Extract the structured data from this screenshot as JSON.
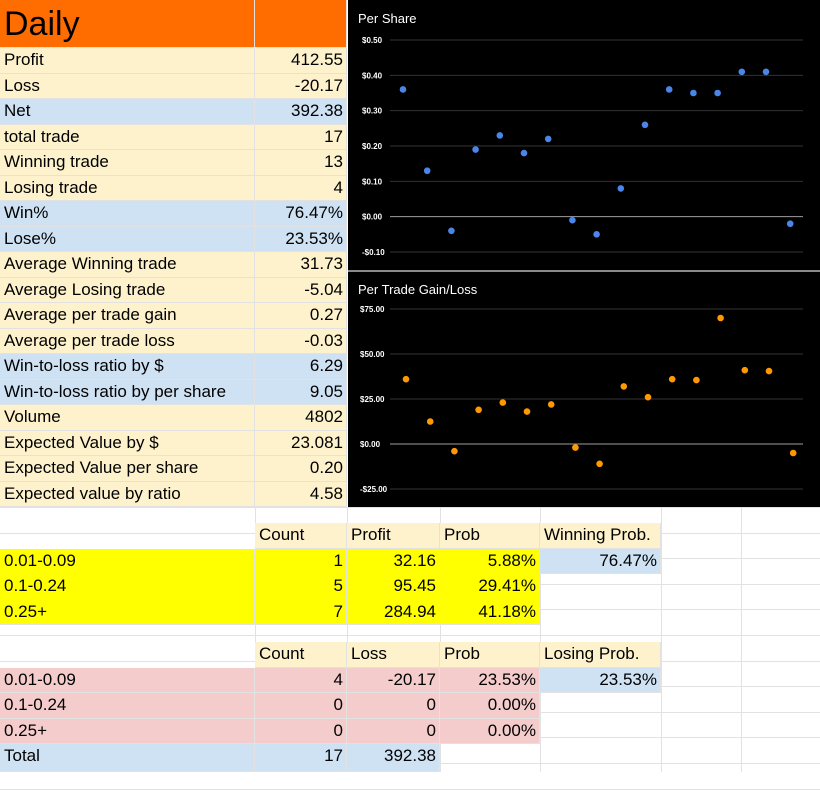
{
  "daily": {
    "title": "Daily",
    "rows": [
      {
        "label": "Profit",
        "value": "412.55",
        "color": "beige"
      },
      {
        "label": "Loss",
        "value": "-20.17",
        "color": "beige"
      },
      {
        "label": "Net",
        "value": "392.38",
        "color": "blue"
      },
      {
        "label": "total trade",
        "value": "17",
        "color": "beige"
      },
      {
        "label": "Winning trade",
        "value": "13",
        "color": "beige"
      },
      {
        "label": "Losing trade",
        "value": "4",
        "color": "beige"
      },
      {
        "label": "Win%",
        "value": "76.47%",
        "color": "blue"
      },
      {
        "label": "Lose%",
        "value": "23.53%",
        "color": "blue"
      },
      {
        "label": "Average Winning trade",
        "value": "31.73",
        "color": "beige"
      },
      {
        "label": "Average Losing trade",
        "value": "-5.04",
        "color": "beige"
      },
      {
        "label": "Average per trade gain",
        "value": "0.27",
        "color": "beige"
      },
      {
        "label": "Average per trade loss",
        "value": "-0.03",
        "color": "beige"
      },
      {
        "label": "Win-to-loss ratio by $",
        "value": "6.29",
        "color": "blue"
      },
      {
        "label": "Win-to-loss ratio by per share",
        "value": "9.05",
        "color": "blue"
      },
      {
        "label": "Volume",
        "value": "4802",
        "color": "beige"
      },
      {
        "label": "Expected Value by $",
        "value": "23.081",
        "color": "beige"
      },
      {
        "label": "Expected Value per share",
        "value": "0.20",
        "color": "beige"
      },
      {
        "label": "Expected value by ratio",
        "value": "4.58",
        "color": "beige"
      }
    ]
  },
  "winning_table": {
    "headers": {
      "count": "Count",
      "amount": "Profit",
      "prob": "Prob",
      "extra": "Winning Prob."
    },
    "extra_value": "76.47%",
    "rows": [
      {
        "range": "0.01-0.09",
        "count": "1",
        "amount": "32.16",
        "prob": "5.88%"
      },
      {
        "range": "0.1-0.24",
        "count": "5",
        "amount": "95.45",
        "prob": "29.41%"
      },
      {
        "range": "0.25+",
        "count": "7",
        "amount": "284.94",
        "prob": "41.18%"
      }
    ]
  },
  "losing_table": {
    "headers": {
      "count": "Count",
      "amount": "Loss",
      "prob": "Prob",
      "extra": "Losing Prob."
    },
    "extra_value": "23.53%",
    "rows": [
      {
        "range": "0.01-0.09",
        "count": "4",
        "amount": "-20.17",
        "prob": "23.53%"
      },
      {
        "range": "0.1-0.24",
        "count": "0",
        "amount": "0",
        "prob": "0.00%"
      },
      {
        "range": "0.25+",
        "count": "0",
        "amount": "0",
        "prob": "0.00%"
      }
    ],
    "total": {
      "label": "Total",
      "count": "17",
      "amount": "392.38"
    }
  },
  "colors": {
    "orange_header": "#ff6d01",
    "beige": "#fdf2cc",
    "blue": "#cfe2f3",
    "yellow": "#ffff00",
    "pink": "#f4cccc",
    "chart_bg": "#000000",
    "blue_points": "#4a86e8",
    "orange_points": "#ff9900"
  },
  "chart_data": [
    {
      "type": "scatter",
      "title": "Per Share",
      "ylim": [
        -0.1,
        0.5
      ],
      "yticks": [
        0.5,
        0.4,
        0.3,
        0.2,
        0.1,
        0.0,
        -0.1
      ],
      "ytick_labels": [
        "$0.50",
        "$0.40",
        "$0.30",
        "$0.20",
        "$0.10",
        "$0.00",
        "-$0.10"
      ],
      "x": [
        1,
        2,
        3,
        4,
        5,
        6,
        7,
        8,
        9,
        10,
        11,
        12,
        13,
        14,
        15,
        16,
        17
      ],
      "values": [
        0.36,
        0.13,
        -0.04,
        0.19,
        0.23,
        0.18,
        0.22,
        -0.01,
        -0.05,
        0.08,
        0.26,
        0.36,
        0.35,
        0.35,
        0.41,
        0.41,
        -0.02
      ],
      "color": "#4a86e8",
      "grid": true
    },
    {
      "type": "scatter",
      "title": "Per Trade Gain/Loss",
      "ylim": [
        -25,
        75
      ],
      "yticks": [
        75,
        50,
        25,
        0,
        -25
      ],
      "ytick_labels": [
        "$75.00",
        "$50.00",
        "$25.00",
        "$0.00",
        "-$25.00"
      ],
      "x": [
        1,
        2,
        3,
        4,
        5,
        6,
        7,
        8,
        9,
        10,
        11,
        12,
        13,
        14,
        15,
        16,
        17
      ],
      "values": [
        36,
        12.5,
        -4,
        19,
        23,
        18,
        22,
        -2,
        -11,
        32,
        26,
        36,
        35.5,
        70,
        41,
        40.5,
        -5
      ],
      "color": "#ff9900",
      "grid": true
    }
  ]
}
